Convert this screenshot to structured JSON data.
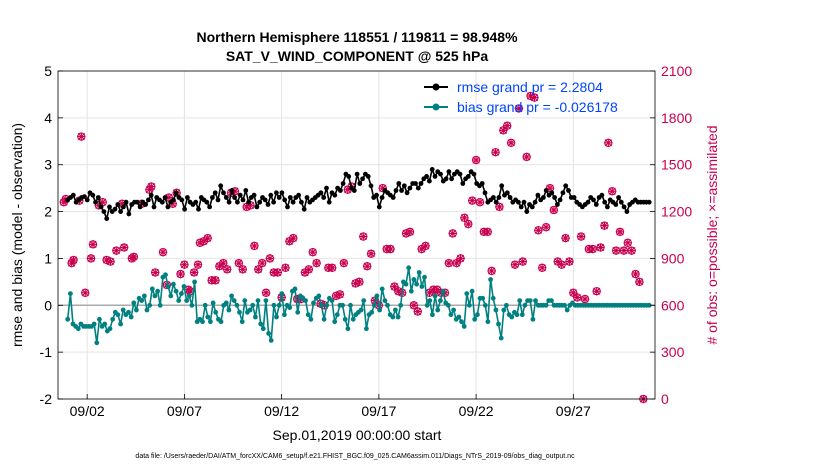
{
  "chart_data": {
    "type": "line",
    "title_line1": "Northern Hemisphere 118551 / 119811 = 98.948%",
    "title_line2": "SAT_V_WIND_COMPONENT @ 525 hPa",
    "xlabel": "Sep.01,2019 00:00:00 start",
    "ylabel": "rmse and bias (model - observation)",
    "ylabel_right": "# of obs: o=possible; ×=assimilated",
    "footnote": "data file: /Users/raeder/DAI/ATM_forcXX/CAM6_setup/f.e21.FHIST_BGC.f09_025.CAM6assim.011/Diags_NTrS_2019-09/obs_diag_output.nc",
    "xlim": [
      0.5,
      31.2
    ],
    "ylim": [
      -2,
      5
    ],
    "ylim_right": [
      0,
      2100
    ],
    "x_ticks": [
      2,
      7,
      12,
      17,
      22,
      27
    ],
    "x_tick_labels": [
      "09/02",
      "09/07",
      "09/12",
      "09/17",
      "09/22",
      "09/27"
    ],
    "y_ticks": [
      -2,
      -1,
      0,
      1,
      2,
      3,
      4,
      5
    ],
    "y_tick_labels": [
      "-2",
      "-1",
      "0",
      "1",
      "2",
      "3",
      "4",
      "5"
    ],
    "y_right_ticks": [
      0,
      300,
      600,
      900,
      1200,
      1500,
      1800,
      2100
    ],
    "y_right_tick_labels": [
      "0",
      "300",
      "600",
      "900",
      "1200",
      "1500",
      "1800",
      "2100"
    ],
    "grid": true,
    "legend_position": "top-right",
    "colors": {
      "rmse": "#000000",
      "bias": "#008080",
      "obs": "#c8004f",
      "zero_line": "#aaaaaa",
      "legend_text": "#0044ff"
    },
    "series": [
      {
        "name": "rmse grand pr = 2.2804",
        "values": [
          2.25,
          2.3,
          2.35,
          2.2,
          2.25,
          2.3,
          2.32,
          2.25,
          2.4,
          2.35,
          2.2,
          2.3,
          2.1,
          2.0,
          1.85,
          2.1,
          2.0,
          2.05,
          2.15,
          2.0,
          2.1,
          2.2,
          1.95,
          2.15,
          2.2,
          2.2,
          2.1,
          2.2,
          2.15,
          2.25,
          2.35,
          2.1,
          2.3,
          2.25,
          2.2,
          2.3,
          2.1,
          2.2,
          2.25,
          2.4,
          2.3,
          2.25,
          2.05,
          2.3,
          2.2,
          2.15,
          2.2,
          2.05,
          2.3,
          2.25,
          2.2,
          2.1,
          2.3,
          2.4,
          2.25,
          2.55,
          2.4,
          2.3,
          2.2,
          2.45,
          2.3,
          2.2,
          2.35,
          2.25,
          2.45,
          2.2,
          2.3,
          2.35,
          2.1,
          2.2,
          2.3,
          2.25,
          2.15,
          2.35,
          2.2,
          2.4,
          2.3,
          2.4,
          2.25,
          2.1,
          2.3,
          2.2,
          2.3,
          2.35,
          2.2,
          2.05,
          2.3,
          2.2,
          2.25,
          2.3,
          2.35,
          2.4,
          2.3,
          2.5,
          2.2,
          2.4,
          2.35,
          2.5,
          2.45,
          2.6,
          2.8,
          2.75,
          2.5,
          2.45,
          2.8,
          2.6,
          2.7,
          2.8,
          2.75,
          2.55,
          2.3,
          2.35,
          2.1,
          2.3,
          2.45,
          2.4,
          2.35,
          2.3,
          2.45,
          2.6,
          2.45,
          2.55,
          2.4,
          2.5,
          2.6,
          2.6,
          2.5,
          2.6,
          2.7,
          2.75,
          2.65,
          2.9,
          2.75,
          2.85,
          2.8,
          2.65,
          2.7,
          2.85,
          2.7,
          2.8,
          2.85,
          2.8,
          2.6,
          2.7,
          2.75,
          2.85,
          2.8,
          2.6,
          2.55,
          2.6,
          2.4,
          2.2,
          2.25,
          2.3,
          2.2,
          2.3,
          2.55,
          2.35,
          2.4,
          2.3,
          2.2,
          2.25,
          2.2,
          2.1,
          2.2,
          2.0,
          2.15,
          2.1,
          2.2,
          2.35,
          2.25,
          2.3,
          2.45,
          2.35,
          2.4,
          2.3,
          2.15,
          2.25,
          2.4,
          2.55,
          2.45,
          2.3,
          2.3,
          2.2,
          2.15,
          2.1,
          2.15,
          2.2,
          2.3,
          2.25,
          2.15,
          2.3,
          2.35,
          2.2,
          2.1,
          2.25,
          2.2,
          2.15,
          2.3,
          2.2,
          2.1,
          2.0,
          2.15,
          2.2,
          2.25,
          2.2,
          2.2,
          2.2,
          2.2,
          2.2
        ]
      },
      {
        "name": "bias grand pr = -0.026178",
        "values": [
          -0.3,
          0.25,
          -0.4,
          -0.45,
          -0.5,
          -0.4,
          -0.45,
          -0.45,
          -0.45,
          -0.45,
          -0.4,
          -0.8,
          -0.3,
          -0.45,
          -0.4,
          -0.55,
          -0.5,
          -0.3,
          -0.15,
          -0.2,
          -0.4,
          -0.1,
          -0.2,
          -0.15,
          -0.25,
          0.05,
          -0.1,
          0.15,
          0.1,
          0.2,
          -0.1,
          0.0,
          0.35,
          0.2,
          0.3,
          0.0,
          0.6,
          0.65,
          0.4,
          0.2,
          0.45,
          0.3,
          0.1,
          0.25,
          0.4,
          0.1,
          0.2,
          0.0,
          0.5,
          -0.35,
          -0.3,
          -0.35,
          0.0,
          -0.25,
          -0.35,
          0.05,
          -0.15,
          -0.3,
          -0.35,
          0.0,
          0.05,
          -0.1,
          0.2,
          0.1,
          0.0,
          -0.15,
          -0.35,
          0.1,
          -0.15,
          -0.1,
          0.0,
          -0.25,
          0.1,
          -0.4,
          -0.5,
          0.1,
          -0.6,
          -0.75,
          0.0,
          -0.25,
          0.0,
          0.25,
          -0.2,
          0.0,
          -0.05,
          0.3,
          0.35,
          -0.15,
          0.2,
          0.15,
          0.1,
          -0.2,
          -0.3,
          0.05,
          0.15,
          0.2,
          0.0,
          -0.3,
          0.0,
          0.15,
          0.1,
          -0.35,
          -0.2,
          0.0,
          0.0,
          -0.3,
          -0.5,
          0.0,
          -0.3,
          -0.2,
          -0.15,
          -0.1,
          0.1,
          -0.5,
          -0.2,
          -0.15,
          0.0,
          0.2,
          -0.1,
          0.35,
          0.1,
          0.0,
          -0.2,
          -0.25,
          -0.1,
          -0.25,
          0.0,
          0.5,
          0.45,
          0.8,
          0.3,
          0.55,
          0.45,
          0.7,
          0.4,
          0.6,
          0.0,
          0.1,
          -0.2,
          0.2,
          -0.1,
          0.1,
          0.3,
          0.05,
          0.0,
          -0.2,
          -0.1,
          -0.3,
          -0.25,
          -0.35,
          -0.45,
          0.25,
          0.0,
          0.3,
          -0.3,
          -0.2,
          0.15,
          0.15,
          0.0,
          -0.35,
          0.55,
          0.15,
          -0.1,
          -0.4,
          -0.7,
          -0.1,
          0.0,
          -0.2,
          -0.25,
          -0.15,
          -0.2,
          0.1,
          -0.2,
          0.0,
          0.1,
          0.1,
          -0.3,
          0.1,
          0.0,
          0.0,
          0.0,
          0.0,
          0.1,
          0.1,
          0.0,
          0.0,
          0.0,
          0.0,
          0.0,
          -0.1,
          0.0,
          0.05,
          0.0,
          0.0,
          0.0,
          0.0,
          0.0,
          0.0,
          0.0,
          0.0,
          0.0,
          0.0,
          0.0,
          0.0,
          0.0,
          0.0,
          0.0,
          0.0,
          0.0,
          0.0,
          0.0,
          0.0,
          0.0,
          0.0,
          0.0,
          0.0,
          0.0,
          0.0,
          0.0,
          0.0,
          0.0
        ]
      }
    ],
    "obs_counts": [
      {
        "x": 0.8,
        "y": 1260
      },
      {
        "x": 0.9,
        "y": 1280
      },
      {
        "x": 1.2,
        "y": 870
      },
      {
        "x": 1.3,
        "y": 890
      },
      {
        "x": 1.6,
        "y": 1270
      },
      {
        "x": 1.7,
        "y": 1680
      },
      {
        "x": 1.9,
        "y": 680
      },
      {
        "x": 2.2,
        "y": 900
      },
      {
        "x": 2.3,
        "y": 990
      },
      {
        "x": 2.6,
        "y": 1240
      },
      {
        "x": 2.8,
        "y": 1260
      },
      {
        "x": 3.0,
        "y": 890
      },
      {
        "x": 3.2,
        "y": 880
      },
      {
        "x": 3.5,
        "y": 950
      },
      {
        "x": 3.8,
        "y": 1250
      },
      {
        "x": 3.9,
        "y": 970
      },
      {
        "x": 4.3,
        "y": 900
      },
      {
        "x": 4.4,
        "y": 910
      },
      {
        "x": 4.8,
        "y": 1250
      },
      {
        "x": 5.2,
        "y": 1340
      },
      {
        "x": 5.3,
        "y": 1360
      },
      {
        "x": 5.5,
        "y": 810
      },
      {
        "x": 5.9,
        "y": 940
      },
      {
        "x": 6.1,
        "y": 730
      },
      {
        "x": 6.2,
        "y": 1290
      },
      {
        "x": 6.4,
        "y": 1250
      },
      {
        "x": 6.6,
        "y": 1320
      },
      {
        "x": 6.8,
        "y": 800
      },
      {
        "x": 7.0,
        "y": 860
      },
      {
        "x": 7.2,
        "y": 700
      },
      {
        "x": 7.3,
        "y": 690
      },
      {
        "x": 7.5,
        "y": 810
      },
      {
        "x": 7.7,
        "y": 860
      },
      {
        "x": 7.8,
        "y": 1000
      },
      {
        "x": 8.0,
        "y": 1010
      },
      {
        "x": 8.2,
        "y": 1030
      },
      {
        "x": 8.4,
        "y": 760
      },
      {
        "x": 8.6,
        "y": 760
      },
      {
        "x": 8.8,
        "y": 850
      },
      {
        "x": 9.0,
        "y": 870
      },
      {
        "x": 9.2,
        "y": 830
      },
      {
        "x": 9.4,
        "y": 1320
      },
      {
        "x": 9.6,
        "y": 1330
      },
      {
        "x": 9.8,
        "y": 870
      },
      {
        "x": 10.0,
        "y": 830
      },
      {
        "x": 10.2,
        "y": 1230
      },
      {
        "x": 10.4,
        "y": 1240
      },
      {
        "x": 10.6,
        "y": 980
      },
      {
        "x": 10.8,
        "y": 830
      },
      {
        "x": 11.0,
        "y": 870
      },
      {
        "x": 11.2,
        "y": 680
      },
      {
        "x": 11.4,
        "y": 900
      },
      {
        "x": 11.6,
        "y": 810
      },
      {
        "x": 11.8,
        "y": 810
      },
      {
        "x": 12.0,
        "y": 650
      },
      {
        "x": 12.2,
        "y": 840
      },
      {
        "x": 12.4,
        "y": 1010
      },
      {
        "x": 12.6,
        "y": 1030
      },
      {
        "x": 12.8,
        "y": 640
      },
      {
        "x": 13.0,
        "y": 640
      },
      {
        "x": 13.2,
        "y": 810
      },
      {
        "x": 13.4,
        "y": 830
      },
      {
        "x": 13.6,
        "y": 940
      },
      {
        "x": 13.8,
        "y": 870
      },
      {
        "x": 14.0,
        "y": 610
      },
      {
        "x": 14.2,
        "y": 600
      },
      {
        "x": 14.4,
        "y": 840
      },
      {
        "x": 14.6,
        "y": 840
      },
      {
        "x": 14.8,
        "y": 660
      },
      {
        "x": 15.0,
        "y": 670
      },
      {
        "x": 15.2,
        "y": 870
      },
      {
        "x": 15.4,
        "y": 1340
      },
      {
        "x": 15.6,
        "y": 1360
      },
      {
        "x": 15.8,
        "y": 740
      },
      {
        "x": 16.0,
        "y": 750
      },
      {
        "x": 16.2,
        "y": 1040
      },
      {
        "x": 16.4,
        "y": 850
      },
      {
        "x": 16.6,
        "y": 930
      },
      {
        "x": 16.8,
        "y": 630
      },
      {
        "x": 17.0,
        "y": 600
      },
      {
        "x": 17.2,
        "y": 1350
      },
      {
        "x": 17.4,
        "y": 960
      },
      {
        "x": 17.6,
        "y": 960
      },
      {
        "x": 17.8,
        "y": 720
      },
      {
        "x": 18.0,
        "y": 690
      },
      {
        "x": 18.2,
        "y": 680
      },
      {
        "x": 18.4,
        "y": 1060
      },
      {
        "x": 18.6,
        "y": 1070
      },
      {
        "x": 18.8,
        "y": 600
      },
      {
        "x": 19.0,
        "y": 560
      },
      {
        "x": 19.2,
        "y": 960
      },
      {
        "x": 19.4,
        "y": 980
      },
      {
        "x": 19.6,
        "y": 680
      },
      {
        "x": 19.8,
        "y": 700
      },
      {
        "x": 20.0,
        "y": 700
      },
      {
        "x": 20.2,
        "y": 680
      },
      {
        "x": 20.4,
        "y": 680
      },
      {
        "x": 20.6,
        "y": 870
      },
      {
        "x": 20.8,
        "y": 1060
      },
      {
        "x": 21.0,
        "y": 870
      },
      {
        "x": 21.2,
        "y": 900
      },
      {
        "x": 21.4,
        "y": 1160
      },
      {
        "x": 21.6,
        "y": 1120
      },
      {
        "x": 21.8,
        "y": 1270
      },
      {
        "x": 22.0,
        "y": 1530
      },
      {
        "x": 22.2,
        "y": 1260
      },
      {
        "x": 22.4,
        "y": 1070
      },
      {
        "x": 22.6,
        "y": 1070
      },
      {
        "x": 22.8,
        "y": 820
      },
      {
        "x": 23.0,
        "y": 1580
      },
      {
        "x": 23.2,
        "y": 1230
      },
      {
        "x": 23.4,
        "y": 1720
      },
      {
        "x": 23.6,
        "y": 1750
      },
      {
        "x": 23.8,
        "y": 1640
      },
      {
        "x": 24.0,
        "y": 860
      },
      {
        "x": 24.2,
        "y": 1860
      },
      {
        "x": 24.4,
        "y": 880
      },
      {
        "x": 24.6,
        "y": 1550
      },
      {
        "x": 24.8,
        "y": 1940
      },
      {
        "x": 25.0,
        "y": 1930
      },
      {
        "x": 25.2,
        "y": 1080
      },
      {
        "x": 25.4,
        "y": 840
      },
      {
        "x": 25.6,
        "y": 1100
      },
      {
        "x": 25.8,
        "y": 1350
      },
      {
        "x": 26.0,
        "y": 1210
      },
      {
        "x": 26.2,
        "y": 880
      },
      {
        "x": 26.4,
        "y": 860
      },
      {
        "x": 26.6,
        "y": 1030
      },
      {
        "x": 26.8,
        "y": 880
      },
      {
        "x": 27.0,
        "y": 680
      },
      {
        "x": 27.2,
        "y": 650
      },
      {
        "x": 27.4,
        "y": 1040
      },
      {
        "x": 27.6,
        "y": 640
      },
      {
        "x": 27.8,
        "y": 960
      },
      {
        "x": 28.0,
        "y": 960
      },
      {
        "x": 28.2,
        "y": 690
      },
      {
        "x": 28.4,
        "y": 970
      },
      {
        "x": 28.6,
        "y": 1110
      },
      {
        "x": 28.8,
        "y": 1640
      },
      {
        "x": 29.0,
        "y": 1330
      },
      {
        "x": 29.2,
        "y": 950
      },
      {
        "x": 29.4,
        "y": 1070
      },
      {
        "x": 29.6,
        "y": 950
      },
      {
        "x": 29.8,
        "y": 1000
      },
      {
        "x": 30.0,
        "y": 950
      },
      {
        "x": 30.2,
        "y": 800
      },
      {
        "x": 30.4,
        "y": 750
      },
      {
        "x": 30.6,
        "y": 0
      }
    ]
  }
}
